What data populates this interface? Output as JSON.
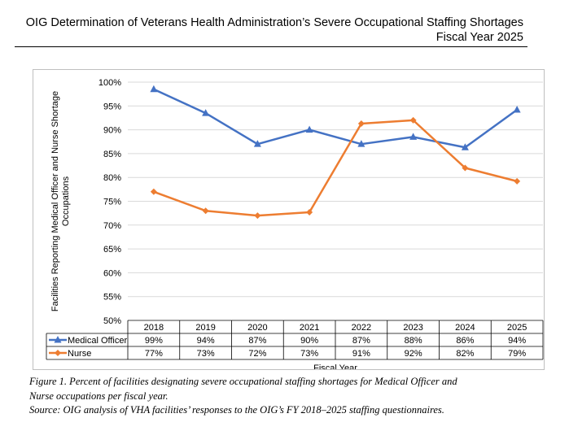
{
  "header": {
    "title_line1": "OIG Determination of Veterans Health Administration’s Severe Occupational Staffing Shortages",
    "title_line2": "Fiscal Year 2025"
  },
  "chart_data": {
    "type": "line",
    "title": "",
    "xlabel": "Fiscal Year",
    "ylabel_line1": "Facilities Reporting Medical Officer and Nurse Shortage",
    "ylabel_line2": "Occupations",
    "ylim": [
      50,
      100
    ],
    "yticks": [
      "100%",
      "95%",
      "90%",
      "85%",
      "80%",
      "75%",
      "70%",
      "65%",
      "60%",
      "55%",
      "50%"
    ],
    "grid": true,
    "legend": "data-table",
    "categories": [
      "2018",
      "2019",
      "2020",
      "2021",
      "2022",
      "2023",
      "2024",
      "2025"
    ],
    "series": [
      {
        "name": "Medical Officer",
        "color": "#4472c4",
        "marker": "triangle-icon",
        "values": [
          98.5,
          93.5,
          87,
          90,
          87,
          88.5,
          86.3,
          94.2
        ],
        "labels": [
          "99%",
          "94%",
          "87%",
          "90%",
          "87%",
          "88%",
          "86%",
          "94%"
        ]
      },
      {
        "name": "Nurse",
        "color": "#ed7d31",
        "marker": "diamond-icon",
        "values": [
          77,
          73,
          72,
          72.7,
          91.3,
          92,
          82,
          79.2
        ],
        "labels": [
          "77%",
          "73%",
          "72%",
          "73%",
          "91%",
          "92%",
          "82%",
          "79%"
        ]
      }
    ]
  },
  "caption": {
    "line1": "Figure 1. Percent of facilities designating severe occupational staffing shortages for Medical Officer and",
    "line2": "Nurse occupations per fiscal year.",
    "line3": "Source: OIG analysis of VHA facilities’ responses to the OIG’s FY 2018–2025 staffing questionnaires."
  }
}
